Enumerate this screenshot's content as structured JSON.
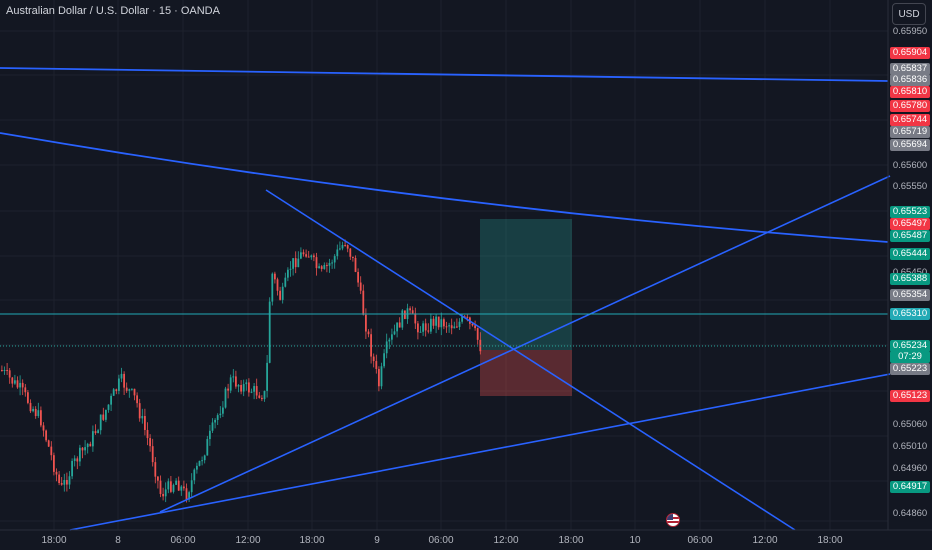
{
  "header": {
    "title": "Australian Dollar / U.S. Dollar · 15 · OANDA",
    "currency": "USD"
  },
  "colors": {
    "background": "#131722",
    "up": "#26a69a",
    "down": "#ef5350",
    "trendline": "#2962ff",
    "level_line": "#22aab5"
  },
  "price_axis": {
    "labels": [
      "0.65950",
      "0.65600",
      "0.65550",
      "0.65450",
      "0.65060",
      "0.65010",
      "0.64960",
      "0.64860"
    ]
  },
  "badges": [
    {
      "value": "0.65904",
      "color": "#f23645"
    },
    {
      "value": "0.65837",
      "color": "#787b86"
    },
    {
      "value": "0.65836",
      "color": "#787b86"
    },
    {
      "value": "0.65810",
      "color": "#f23645"
    },
    {
      "value": "0.65780",
      "color": "#f23645"
    },
    {
      "value": "0.65744",
      "color": "#f23645"
    },
    {
      "value": "0.65719",
      "color": "#787b86"
    },
    {
      "value": "0.65694",
      "color": "#787b86"
    },
    {
      "value": "0.65523",
      "color": "#089981"
    },
    {
      "value": "0.65497",
      "color": "#f23645"
    },
    {
      "value": "0.65487",
      "color": "#089981"
    },
    {
      "value": "0.65444",
      "color": "#089981"
    },
    {
      "value": "0.65388",
      "color": "#089981"
    },
    {
      "value": "0.65354",
      "color": "#787b86"
    },
    {
      "value": "0.65310",
      "color": "#22aab5"
    },
    {
      "value": "0.65234",
      "color": "#089981"
    },
    {
      "value": "07:29",
      "color": "#089981"
    },
    {
      "value": "0.65223",
      "color": "#787b86"
    },
    {
      "value": "0.65123",
      "color": "#f23645"
    },
    {
      "value": "0.64917",
      "color": "#089981"
    }
  ],
  "time_axis": {
    "labels": [
      "18:00",
      "8",
      "06:00",
      "12:00",
      "18:00",
      "9",
      "06:00",
      "12:00",
      "18:00",
      "10",
      "06:00",
      "12:00",
      "18:00"
    ]
  },
  "chart_data": {
    "type": "candlestick",
    "symbol": "AUDUSD",
    "interval": "15",
    "last_price": 0.65234,
    "countdown": "07:29",
    "y_range": [
      0.6484,
      0.6599
    ],
    "position": {
      "entry": 0.65234,
      "take_profit": 0.65523,
      "stop_loss": 0.65123
    }
  }
}
